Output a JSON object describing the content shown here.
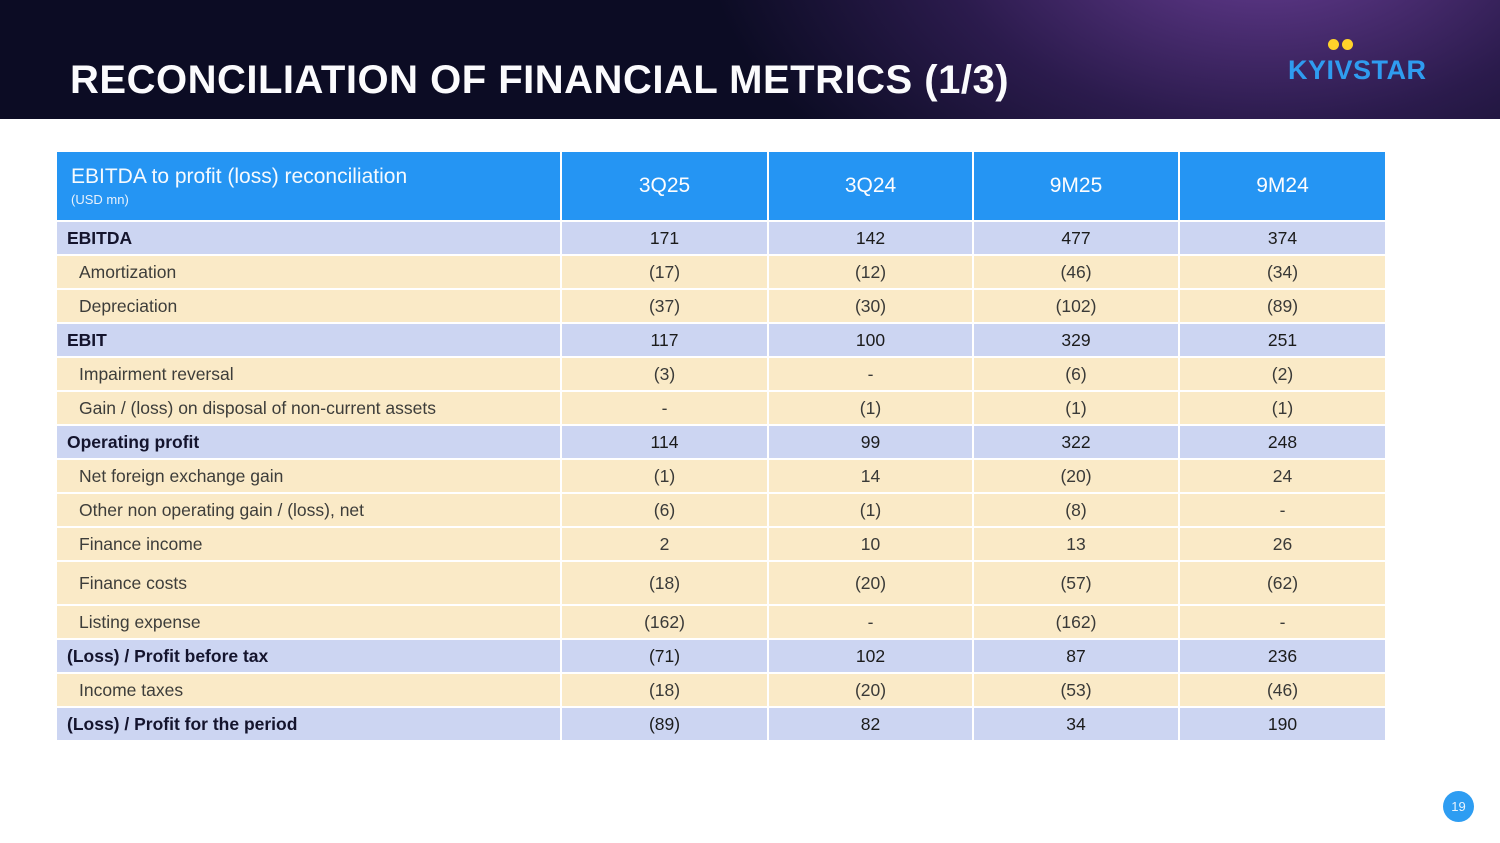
{
  "slide": {
    "title": "RECONCILIATION OF FINANCIAL METRICS (1/3)",
    "page_number": "19"
  },
  "logo": {
    "text": "KYIVSTAR",
    "brand_blue": "#2f9cf0",
    "dot_yellow": "#ffd32a"
  },
  "colors": {
    "band_dark": "#0c0c24",
    "band_purple": "#70429e",
    "header_blue": "#2595f3",
    "total_row": "#ccd5f2",
    "detail_row": "#faeac7"
  },
  "table": {
    "header": {
      "title": "EBITDA to profit (loss) reconciliation",
      "subtitle": "(USD mn)",
      "columns": [
        "3Q25",
        "3Q24",
        "9M25",
        "9M24"
      ]
    },
    "rows": [
      {
        "label": "EBITDA",
        "type": "total",
        "values": [
          "171",
          "142",
          "477",
          "374"
        ]
      },
      {
        "label": "Amortization",
        "type": "detail",
        "values": [
          "(17)",
          "(12)",
          "(46)",
          "(34)"
        ]
      },
      {
        "label": "Depreciation",
        "type": "detail",
        "values": [
          "(37)",
          "(30)",
          "(102)",
          "(89)"
        ]
      },
      {
        "label": "EBIT",
        "type": "total",
        "values": [
          "117",
          "100",
          "329",
          "251"
        ]
      },
      {
        "label": "Impairment reversal",
        "type": "detail",
        "values": [
          "(3)",
          "-",
          "(6)",
          "(2)"
        ]
      },
      {
        "label": "Gain / (loss) on disposal of non-current assets",
        "type": "detail",
        "values": [
          "-",
          "(1)",
          "(1)",
          "(1)"
        ]
      },
      {
        "label": "Operating profit",
        "type": "total",
        "values": [
          "114",
          "99",
          "322",
          "248"
        ]
      },
      {
        "label": "Net foreign exchange gain",
        "type": "detail",
        "values": [
          "(1)",
          "14",
          "(20)",
          "24"
        ]
      },
      {
        "label": "Other non operating gain / (loss), net",
        "type": "detail",
        "values": [
          "(6)",
          "(1)",
          "(8)",
          "-"
        ]
      },
      {
        "label": "Finance income",
        "type": "detail",
        "values": [
          "2",
          "10",
          "13",
          "26"
        ]
      },
      {
        "label": "Finance costs",
        "type": "detail",
        "tall": true,
        "values": [
          "(18)",
          "(20)",
          "(57)",
          "(62)"
        ]
      },
      {
        "label": "Listing expense",
        "type": "detail",
        "values": [
          "(162)",
          "-",
          "(162)",
          "-"
        ]
      },
      {
        "label": "(Loss) / Profit before tax",
        "type": "total",
        "values": [
          "(71)",
          "102",
          "87",
          "236"
        ]
      },
      {
        "label": "Income taxes",
        "type": "detail",
        "values": [
          "(18)",
          "(20)",
          "(53)",
          "(46)"
        ]
      },
      {
        "label": "(Loss) / Profit for the period",
        "type": "total",
        "values": [
          "(89)",
          "82",
          "34",
          "190"
        ]
      }
    ]
  }
}
